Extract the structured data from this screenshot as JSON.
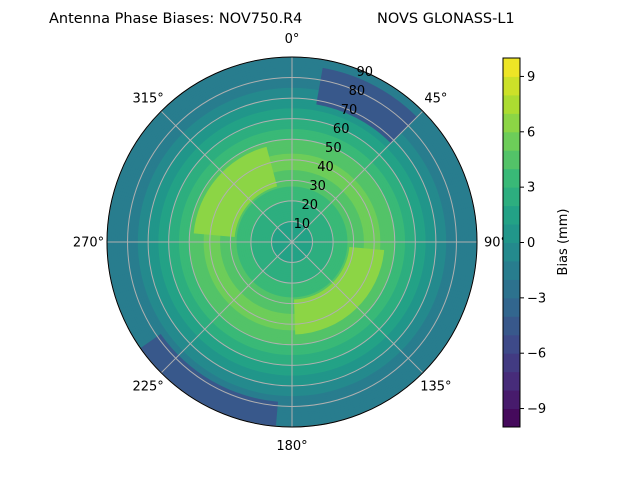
{
  "title_left": "Antenna Phase Biases: NOV750.R4",
  "title_right": "NOVS GLONASS-L1",
  "chart_data": {
    "type": "polar-contour",
    "angular_ticks": [
      "0°",
      "45°",
      "90°",
      "135°",
      "180°",
      "225°",
      "270°",
      "315°"
    ],
    "angular_direction": "clockwise, 0° at top",
    "radial_ticks": [
      "10",
      "20",
      "30",
      "40",
      "50",
      "60",
      "70",
      "80",
      "90"
    ],
    "radial_range": [
      0,
      90
    ],
    "grid": true,
    "radial_profile": {
      "zenith": [
        0,
        10,
        20,
        30,
        40,
        50,
        60,
        70,
        80,
        90
      ],
      "bias": [
        1.5,
        2.0,
        3.0,
        4.5,
        5.5,
        4.0,
        2.0,
        0.0,
        -2.0,
        -2.0
      ]
    },
    "lobes": [
      {
        "azimuth_range": [
          275,
          345
        ],
        "zenith_range": [
          28,
          48
        ],
        "bias": 6.5
      },
      {
        "azimuth_range": [
          95,
          178
        ],
        "zenith_range": [
          28,
          45
        ],
        "bias": 6.5
      },
      {
        "azimuth_range": [
          10,
          45
        ],
        "zenith_range": [
          68,
          86
        ],
        "bias": -4.5
      },
      {
        "azimuth_range": [
          185,
          235
        ],
        "zenith_range": [
          78,
          90
        ],
        "bias": -4.5
      }
    ],
    "colorbar": {
      "label": "Bias (mm)",
      "range": [
        -10,
        10
      ],
      "levels": 20,
      "ticks": [
        "−9",
        "−6",
        "−3",
        "0",
        "3",
        "6",
        "9"
      ],
      "tick_values": [
        -9,
        -6,
        -3,
        0,
        3,
        6,
        9
      ],
      "colormap": "viridis"
    }
  }
}
